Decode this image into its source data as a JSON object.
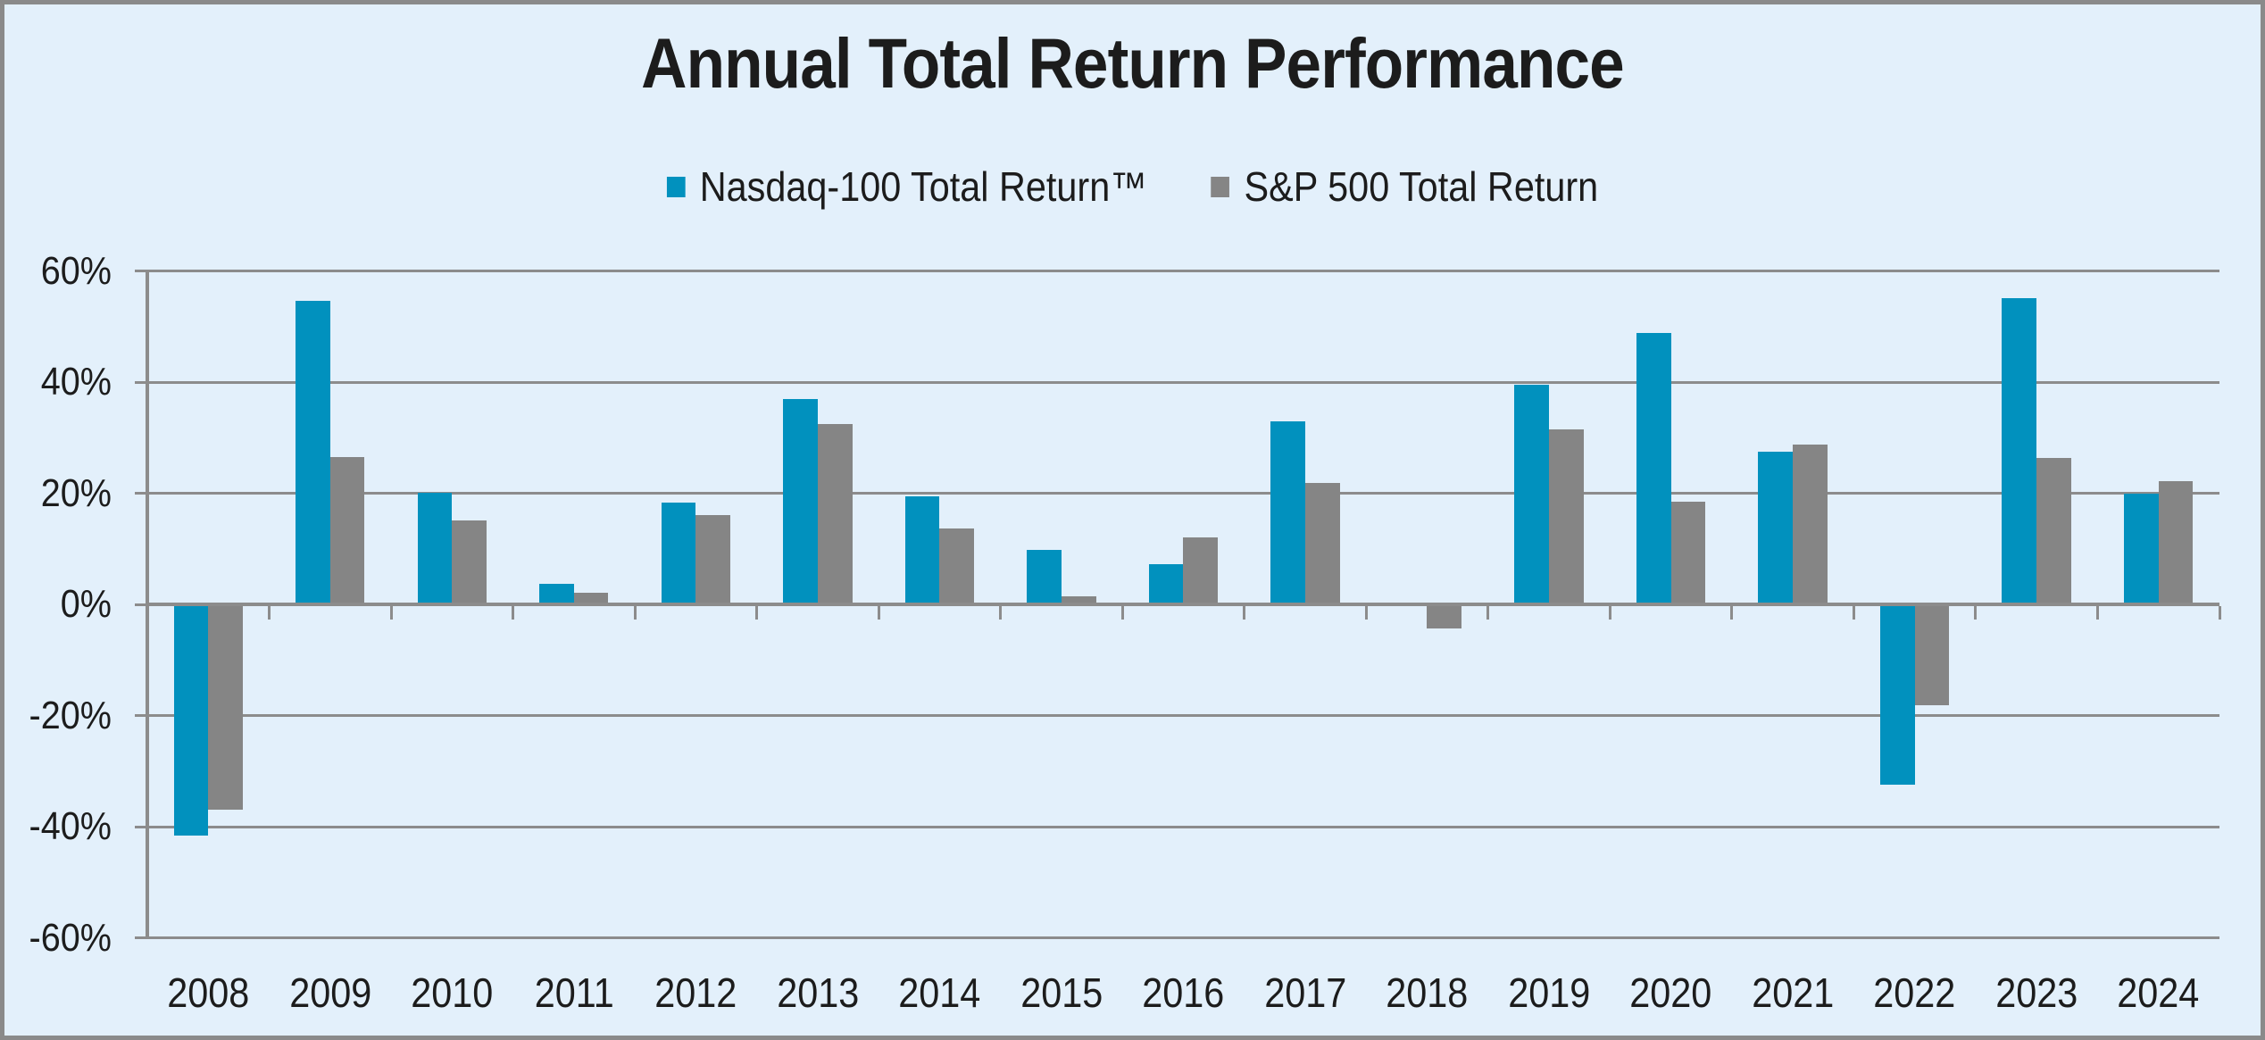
{
  "title": "Annual Total Return Performance",
  "legend": [
    {
      "label": "Nasdaq-100 Total Return™",
      "color": "#0191BE"
    },
    {
      "label": "S&P 500 Total Return",
      "color": "#858585"
    }
  ],
  "chart_data": {
    "type": "bar",
    "title": "Annual Total Return Performance",
    "categories": [
      "2008",
      "2009",
      "2010",
      "2011",
      "2012",
      "2013",
      "2014",
      "2015",
      "2016",
      "2017",
      "2018",
      "2019",
      "2020",
      "2021",
      "2022",
      "2023",
      "2024"
    ],
    "series": [
      {
        "name": "Nasdaq-100 Total Return™",
        "color": "#0191BE",
        "values": [
          -41.6,
          54.6,
          20.1,
          3.7,
          18.3,
          36.9,
          19.4,
          9.8,
          7.3,
          33.0,
          0.0,
          39.5,
          48.9,
          27.5,
          -32.4,
          55.1,
          20.0
        ]
      },
      {
        "name": "S&P 500 Total Return",
        "color": "#858585",
        "values": [
          -37.0,
          26.5,
          15.1,
          2.1,
          16.0,
          32.4,
          13.7,
          1.4,
          12.0,
          21.8,
          -4.4,
          31.5,
          18.4,
          28.7,
          -18.1,
          26.3,
          22.1
        ]
      }
    ],
    "xlabel": "",
    "ylabel": "",
    "ylim": [
      -60,
      60
    ],
    "ytick_step": 20,
    "ytick_labels": [
      "60%",
      "40%",
      "20%",
      "0%",
      "-20%",
      "-40%",
      "-60%"
    ],
    "grid": true,
    "legend_position": "top-center",
    "unit": "percent"
  },
  "colors": {
    "background": "#E3F0FB",
    "gridline": "#8C8C8C",
    "axis": "#8C8C8C",
    "text": "#1C1C1C",
    "frame": "#8A8A8A"
  }
}
